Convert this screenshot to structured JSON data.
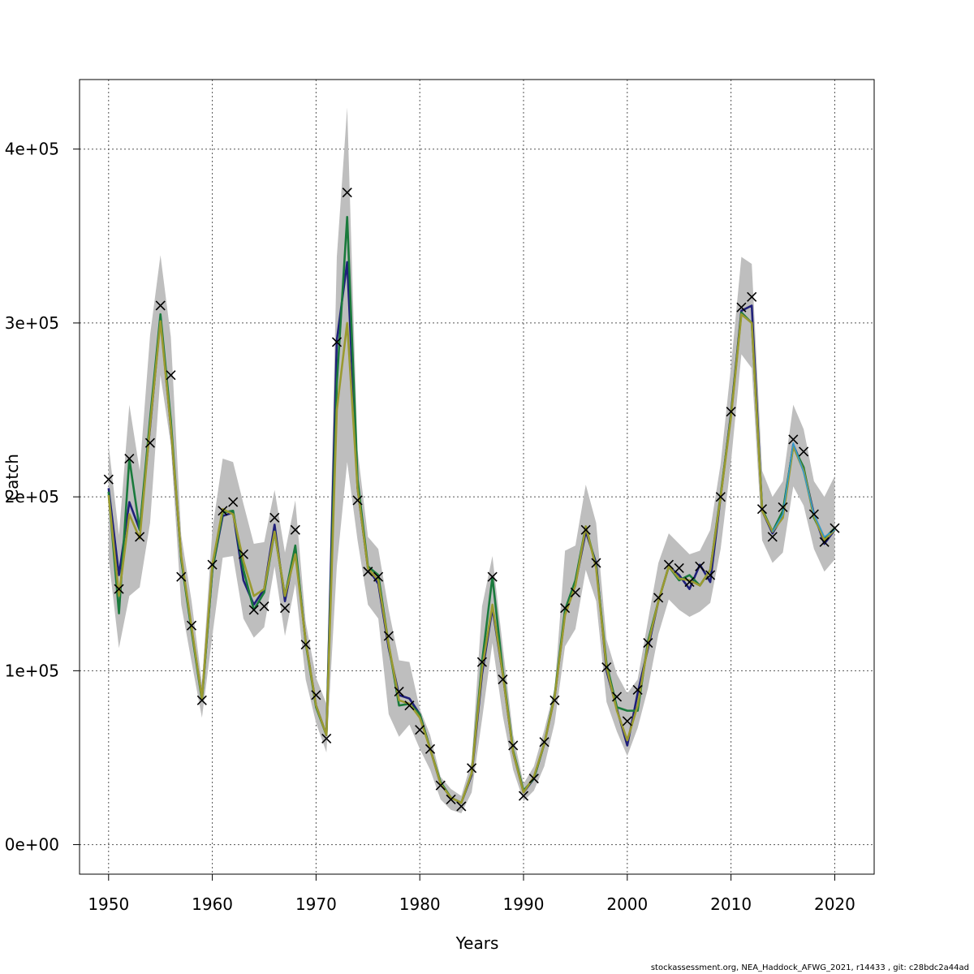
{
  "chart_data": {
    "type": "line",
    "title": "",
    "xlabel": "Years",
    "ylabel": "Catch",
    "xlim": [
      1947.2,
      2023.8
    ],
    "ylim": [
      -17000,
      440000
    ],
    "x_ticks": [
      1950,
      1960,
      1970,
      1980,
      1990,
      2000,
      2010,
      2020
    ],
    "x_tick_labels": [
      "1950",
      "1960",
      "1970",
      "1980",
      "1990",
      "2000",
      "2010",
      "2020"
    ],
    "y_ticks": [
      0,
      100000,
      200000,
      300000,
      400000
    ],
    "y_tick_labels": [
      "0e+00",
      "1e+05",
      "2e+05",
      "3e+05",
      "4e+05"
    ],
    "grid": true,
    "legend": "none",
    "colors": {
      "band": "#bebebe",
      "observed_marker": "#000000",
      "series": [
        "#1f1f7a",
        "#1a7a3c",
        "#9a9a30",
        "#3399cc"
      ]
    },
    "x": [
      1950,
      1951,
      1952,
      1953,
      1954,
      1955,
      1956,
      1957,
      1958,
      1959,
      1960,
      1961,
      1962,
      1963,
      1964,
      1965,
      1966,
      1967,
      1968,
      1969,
      1970,
      1971,
      1972,
      1973,
      1974,
      1975,
      1976,
      1977,
      1978,
      1979,
      1980,
      1981,
      1982,
      1983,
      1984,
      1985,
      1986,
      1987,
      1988,
      1989,
      1990,
      1991,
      1992,
      1993,
      1994,
      1995,
      1996,
      1997,
      1998,
      1999,
      2000,
      2001,
      2002,
      2003,
      2004,
      2005,
      2006,
      2007,
      2008,
      2009,
      2010,
      2011,
      2012,
      2013,
      2014,
      2015,
      2016,
      2017,
      2018,
      2019,
      2020
    ],
    "observed": [
      210000,
      147000,
      222000,
      177000,
      231000,
      310000,
      270000,
      154000,
      126000,
      83000,
      161000,
      192000,
      197000,
      167000,
      135000,
      137000,
      188000,
      136000,
      181000,
      115000,
      86000,
      61000,
      289000,
      375000,
      198000,
      157000,
      154000,
      120000,
      88000,
      80000,
      66000,
      55000,
      34000,
      26000,
      22000,
      44000,
      105000,
      154000,
      95000,
      57000,
      28000,
      38000,
      59000,
      83000,
      136000,
      145000,
      181000,
      162000,
      102000,
      85000,
      71000,
      89000,
      116000,
      142000,
      161000,
      159000,
      151000,
      160000,
      155000,
      200000,
      249000,
      309000,
      315000,
      193000,
      177000,
      194000,
      233000,
      226000,
      190000,
      174000,
      182000
    ],
    "band_low": [
      165000,
      113000,
      143000,
      148000,
      185000,
      270000,
      230000,
      138000,
      105000,
      73000,
      120000,
      165000,
      166000,
      130000,
      119000,
      125000,
      160000,
      120000,
      150000,
      95000,
      70000,
      53000,
      160000,
      220000,
      175000,
      138000,
      130000,
      75000,
      62000,
      69000,
      55000,
      43000,
      26000,
      20000,
      18000,
      30000,
      72000,
      116000,
      74000,
      43000,
      25000,
      31000,
      45000,
      70000,
      114000,
      124000,
      158000,
      140000,
      82000,
      65000,
      51000,
      67000,
      90000,
      121000,
      141000,
      135000,
      131000,
      134000,
      139000,
      170000,
      220000,
      282000,
      274000,
      175000,
      162000,
      168000,
      206000,
      195000,
      170000,
      157000,
      164000
    ],
    "band_high": [
      230000,
      178000,
      253000,
      215000,
      293000,
      339000,
      292000,
      178000,
      140000,
      93000,
      181000,
      222000,
      220000,
      196000,
      173000,
      174000,
      204000,
      168000,
      198000,
      128000,
      96000,
      81000,
      338000,
      424000,
      227000,
      177000,
      170000,
      135000,
      106000,
      105000,
      78000,
      63000,
      39000,
      32000,
      28000,
      48000,
      137000,
      166000,
      114000,
      63000,
      35000,
      45000,
      66000,
      90000,
      169000,
      172000,
      207000,
      185000,
      118000,
      98000,
      87000,
      95000,
      129000,
      162000,
      179000,
      173000,
      167000,
      169000,
      181000,
      219000,
      275000,
      338000,
      334000,
      215000,
      200000,
      209000,
      253000,
      239000,
      209000,
      200000,
      212000
    ],
    "series": [
      {
        "values": [
          205000,
          155000,
          197000,
          181000,
          240000,
          303000,
          240000,
          165000,
          124000,
          84000,
          158000,
          189000,
          191000,
          152000,
          138000,
          147000,
          184000,
          140000,
          170000,
          117000,
          80000,
          63000,
          290000,
          335000,
          205000,
          159000,
          150000,
          113000,
          86000,
          84000,
          75000,
          55000,
          35000,
          27000,
          24000,
          40000,
          98000,
          136000,
          98000,
          53000,
          30000,
          38000,
          58000,
          85000,
          133000,
          150000,
          180000,
          162000,
          100000,
          78000,
          57000,
          87000,
          113000,
          140000,
          160000,
          155000,
          147000,
          161000,
          151000,
          200000,
          248000,
          307000,
          310000,
          192000,
          179000,
          189000,
          230000,
          216000,
          190000,
          173000,
          181000
        ]
      },
      {
        "values": [
          203000,
          133000,
          222000,
          181000,
          245000,
          305000,
          244000,
          164000,
          123000,
          83000,
          158000,
          191000,
          192000,
          158000,
          135000,
          145000,
          180000,
          143000,
          172000,
          116000,
          79000,
          63000,
          265000,
          361000,
          210000,
          160000,
          155000,
          115000,
          80000,
          81000,
          75000,
          55000,
          36000,
          27000,
          24000,
          41000,
          105000,
          154000,
          100000,
          54000,
          31000,
          38000,
          58000,
          86000,
          135000,
          152000,
          183000,
          160000,
          104000,
          79000,
          77000,
          77000,
          117000,
          140000,
          160000,
          152000,
          155000,
          149000,
          158000,
          201000,
          247000,
          306000,
          300000,
          193000,
          180000,
          192000,
          229000,
          217000,
          188000,
          176000,
          182000
        ]
      },
      {
        "values": [
          201000,
          143000,
          190000,
          176000,
          241000,
          301000,
          240000,
          166000,
          125000,
          84000,
          161000,
          193000,
          190000,
          163000,
          143000,
          147000,
          180000,
          143000,
          167000,
          117000,
          80000,
          63000,
          250000,
          300000,
          205000,
          159000,
          152000,
          115000,
          83000,
          81000,
          73000,
          55000,
          35000,
          27000,
          24000,
          41000,
          101000,
          138000,
          98000,
          53000,
          30000,
          39000,
          58000,
          85000,
          132000,
          149000,
          183000,
          159000,
          102000,
          77000,
          60000,
          80000,
          115000,
          140000,
          160000,
          153000,
          152000,
          149000,
          158000,
          200000,
          246000,
          305000,
          300000,
          192000,
          180000,
          188000,
          229000,
          215000,
          189000,
          175000,
          181000
        ]
      },
      {
        "values": [
          null,
          null,
          null,
          null,
          null,
          null,
          null,
          null,
          null,
          null,
          null,
          null,
          null,
          null,
          null,
          null,
          null,
          null,
          null,
          null,
          null,
          null,
          null,
          null,
          null,
          null,
          null,
          null,
          null,
          null,
          null,
          null,
          null,
          null,
          null,
          null,
          null,
          null,
          null,
          null,
          null,
          null,
          null,
          null,
          null,
          null,
          null,
          null,
          null,
          null,
          null,
          null,
          null,
          null,
          null,
          null,
          null,
          null,
          null,
          null,
          null,
          null,
          null,
          null,
          180000,
          190000,
          231000,
          214000,
          190000,
          177000,
          181000
        ]
      }
    ]
  },
  "footer_text": "stockassessment.org, NEA_Haddock_AFWG_2021, r14433 , git: c28bdc2a44ad"
}
